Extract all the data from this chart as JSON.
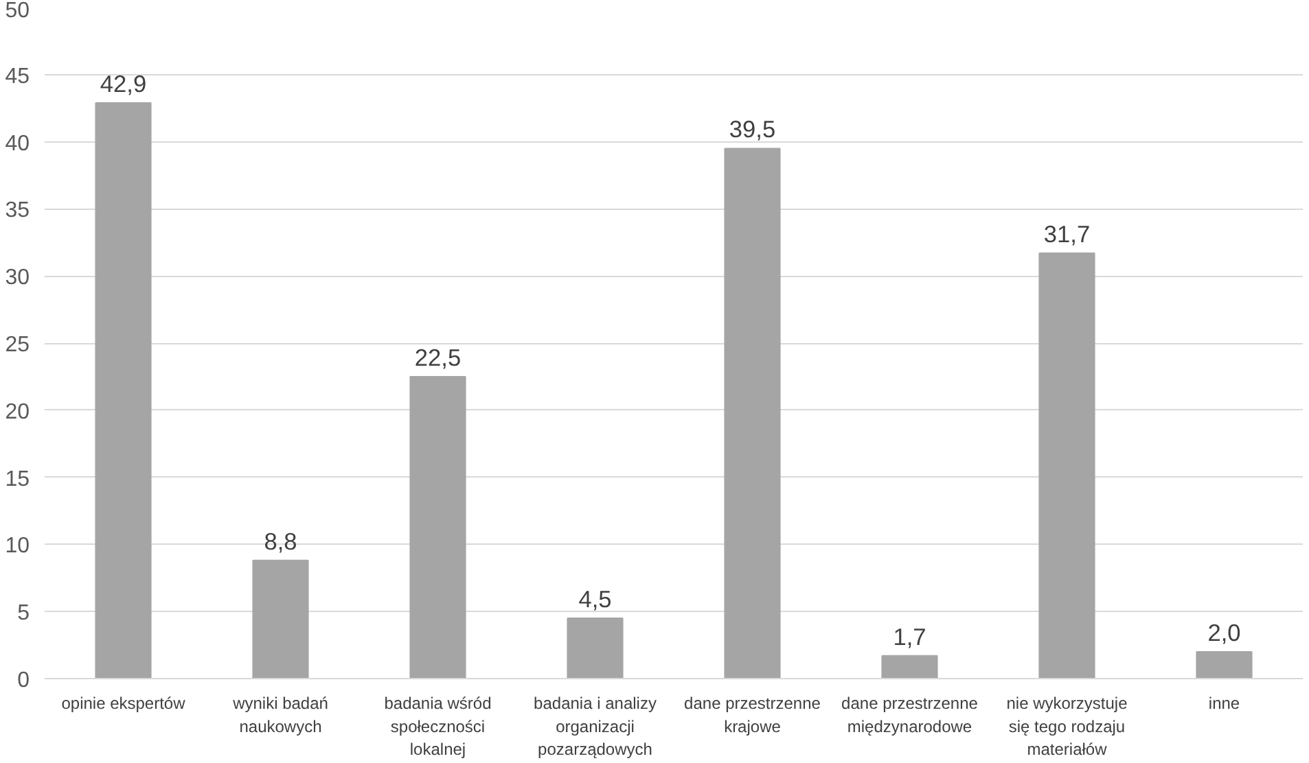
{
  "chart_data": {
    "type": "bar",
    "categories": [
      "opinie ekspertów",
      "wyniki badań naukowych",
      "badania wśród społeczności lokalnej",
      "badania i analizy organizacji pozarządowych",
      "dane przestrzenne krajowe",
      "dane przestrzenne międzynarodowe",
      "nie wykorzystuje się tego rodzaju materiałów",
      "inne"
    ],
    "values": [
      42.9,
      8.8,
      22.5,
      4.5,
      39.5,
      1.7,
      31.7,
      2.0
    ],
    "value_labels": [
      "42,9",
      "8,8",
      "22,5",
      "4,5",
      "39,5",
      "1,7",
      "31,7",
      "2,0"
    ],
    "color": "#a5a5a5",
    "ylim": [
      0,
      50
    ],
    "yticks": [
      0,
      5,
      10,
      15,
      20,
      25,
      30,
      35,
      40,
      45,
      50
    ],
    "grid": "y"
  }
}
